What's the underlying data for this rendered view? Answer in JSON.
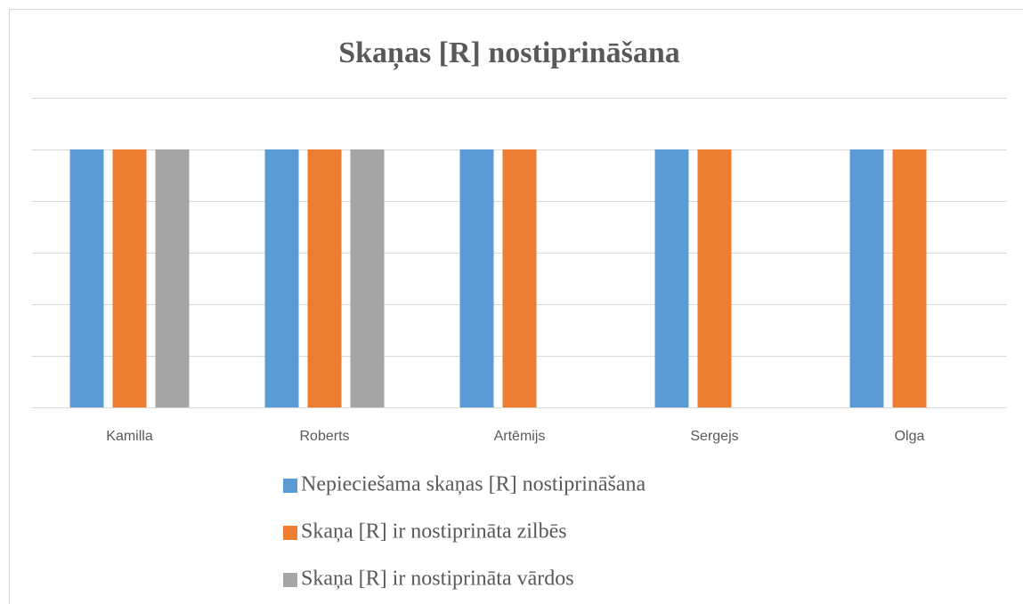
{
  "chart_data": {
    "type": "bar",
    "title": "Skaņas [R] nostiprināšana",
    "categories": [
      "Kamilla",
      "Roberts",
      "Artēmijs",
      "Sergejs",
      "Olga"
    ],
    "series": [
      {
        "name": "Nepieciešama skaņas [R] nostiprināšana",
        "color": "#5b9bd5",
        "values": [
          1,
          1,
          1,
          1,
          1
        ]
      },
      {
        "name": "Skaņa [R] ir nostiprināta zilbēs",
        "color": "#ed7d31",
        "values": [
          1,
          1,
          1,
          1,
          1
        ]
      },
      {
        "name": "Skaņa [R] ir nostiprināta vārdos",
        "color": "#a5a5a5",
        "values": [
          1,
          1,
          0,
          0,
          0
        ]
      }
    ],
    "ylim": [
      0,
      1.2
    ],
    "yticks": [
      0,
      0.2,
      0.4,
      0.6,
      0.8,
      1,
      1.2
    ],
    "grid": true,
    "legend": "bottom"
  }
}
